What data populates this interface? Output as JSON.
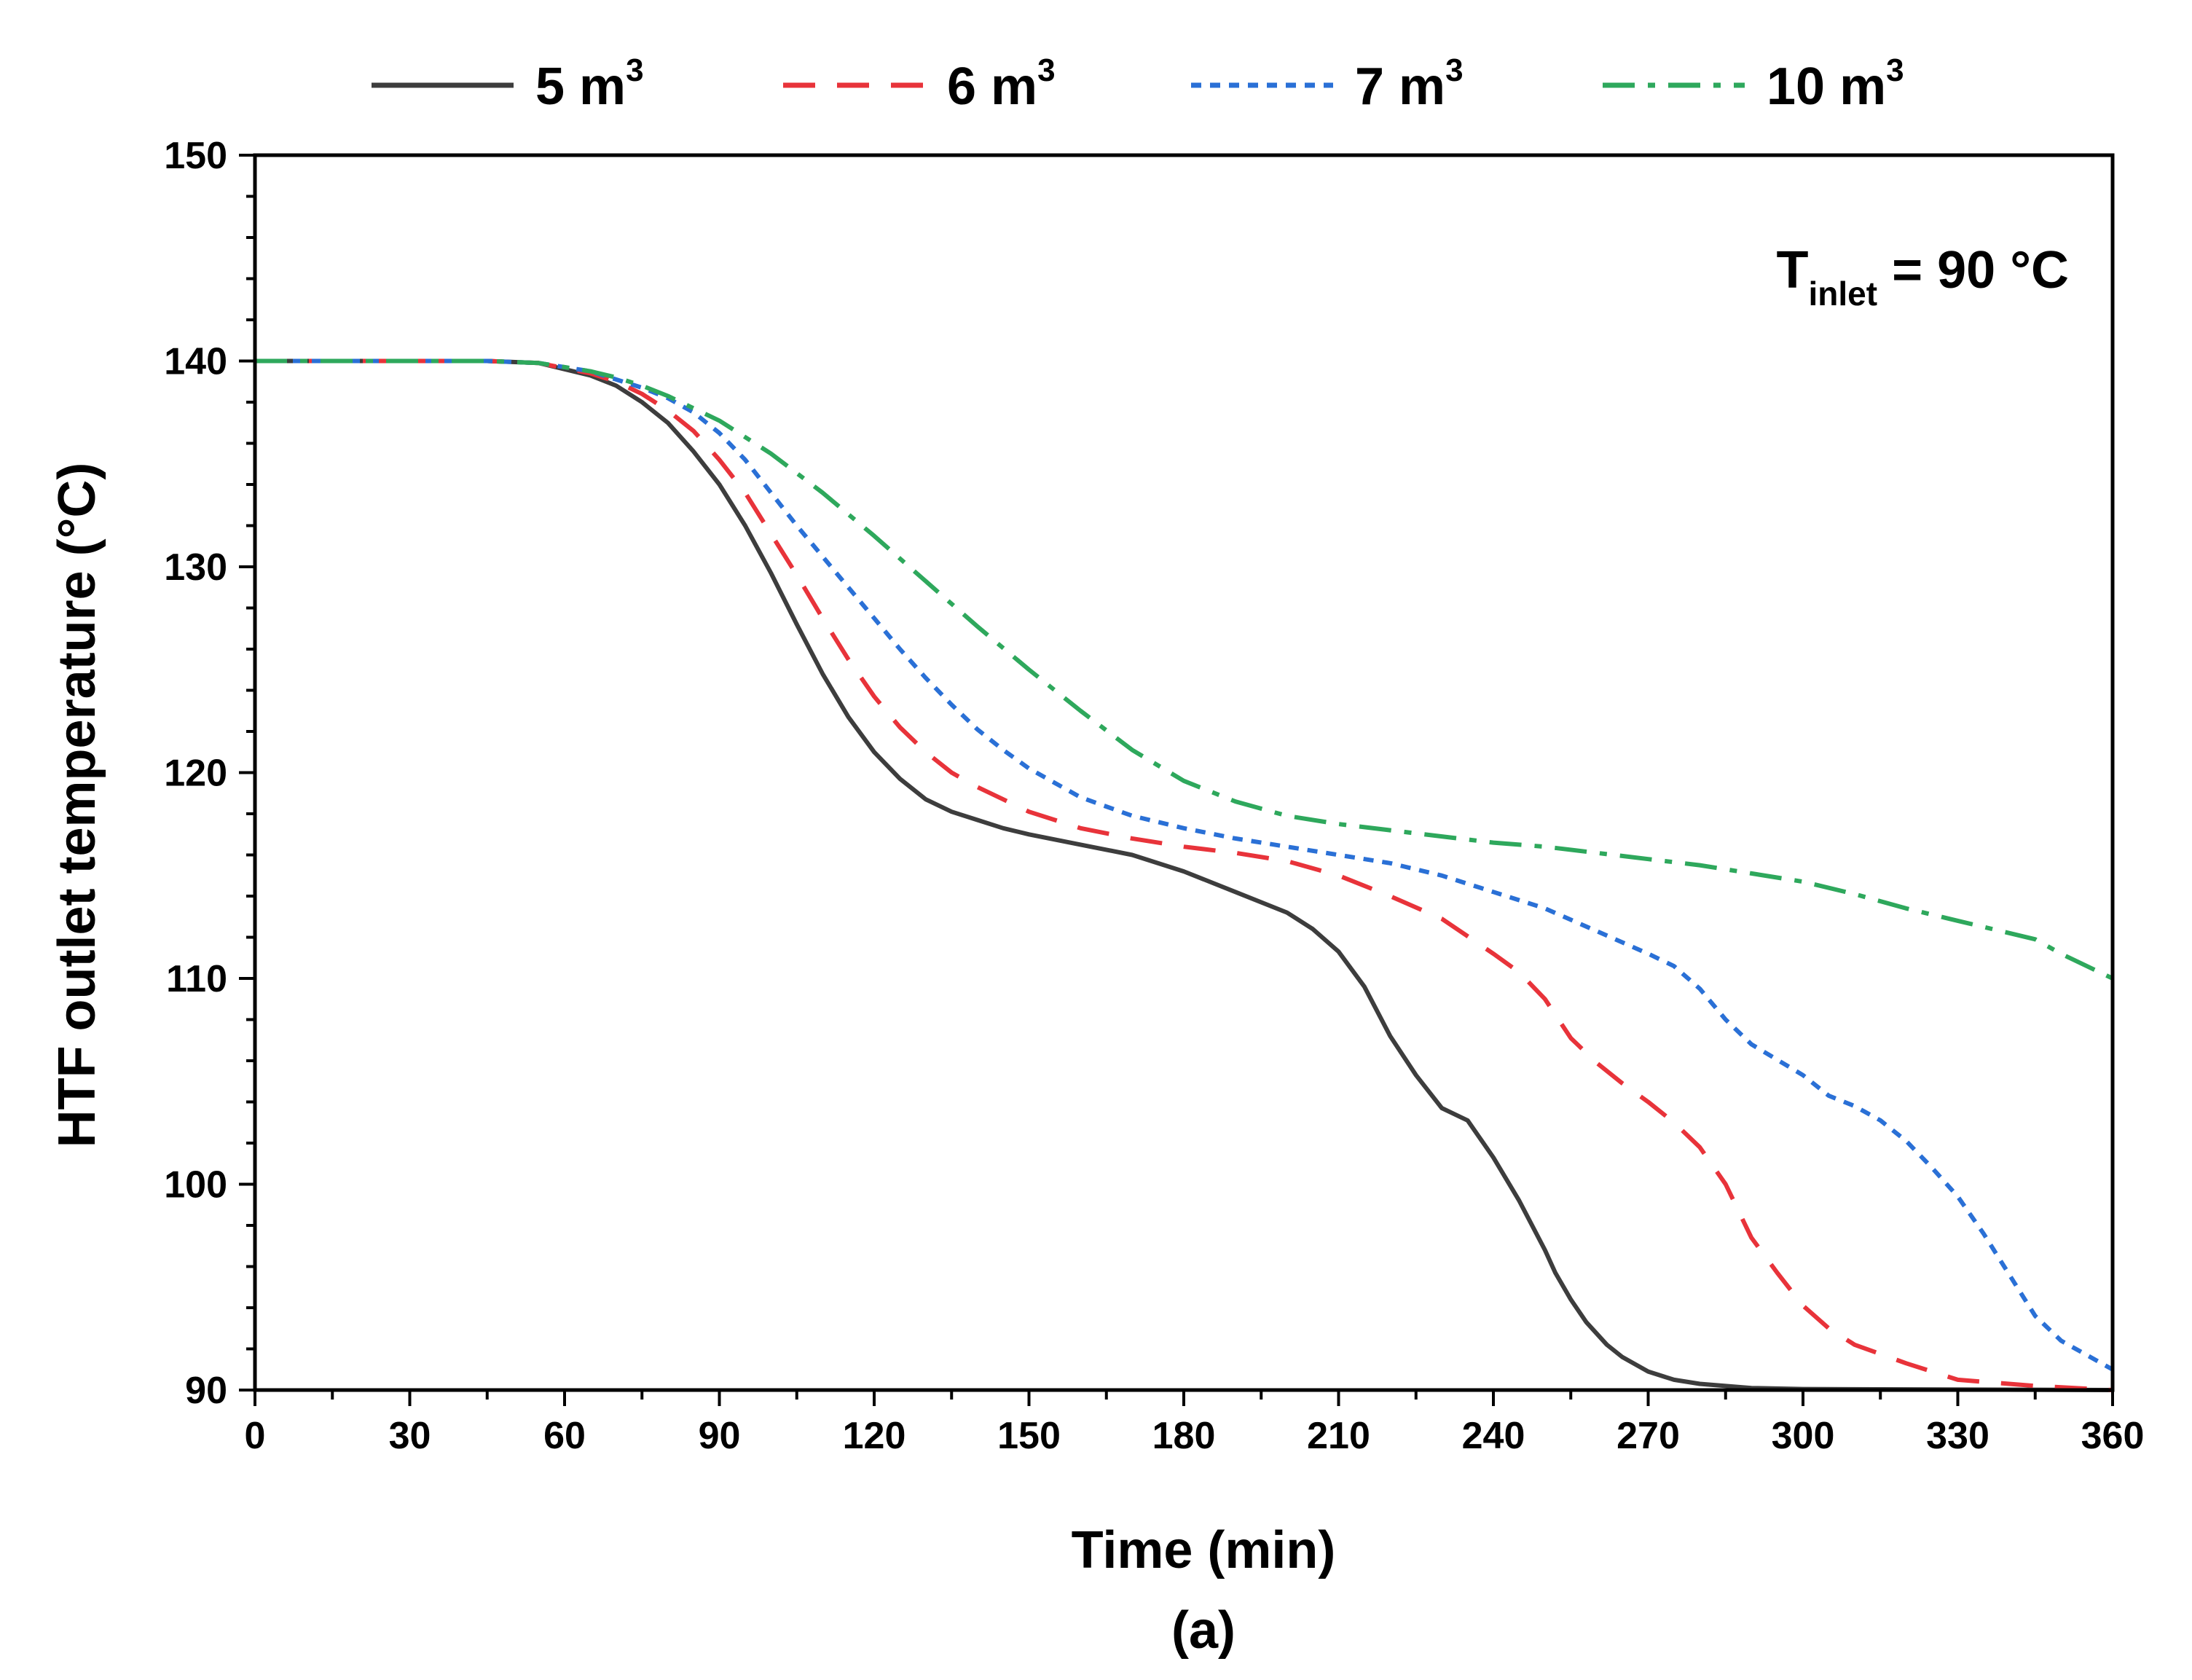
{
  "chart_data": {
    "type": "line",
    "title": "",
    "xlabel": "Time (min)",
    "ylabel": "HTF outlet temperature (°C)",
    "caption": "(a)",
    "xlim": [
      0,
      360
    ],
    "ylim": [
      90,
      150
    ],
    "xticks": [
      0,
      30,
      60,
      90,
      120,
      150,
      180,
      210,
      240,
      270,
      300,
      330,
      360
    ],
    "yticks": [
      90,
      100,
      110,
      120,
      130,
      140,
      150
    ],
    "grid": false,
    "legend_position": "top",
    "annotation": {
      "main": "T",
      "sub": "inlet",
      "rest": " = 90 °C"
    },
    "series": [
      {
        "name": "5 m",
        "sup": "3",
        "color": "#3d3d3d",
        "style": "solid",
        "x": [
          0,
          45,
          55,
          65,
          70,
          75,
          80,
          85,
          90,
          95,
          100,
          105,
          110,
          115,
          120,
          125,
          130,
          135,
          140,
          145,
          150,
          160,
          170,
          180,
          190,
          200,
          205,
          210,
          215,
          220,
          225,
          230,
          235,
          240,
          245,
          250,
          252,
          255,
          258,
          262,
          265,
          270,
          275,
          280,
          290,
          300,
          360
        ],
        "y": [
          140,
          140,
          139.9,
          139.3,
          138.8,
          138.0,
          137.0,
          135.6,
          134.0,
          132.0,
          129.7,
          127.2,
          124.8,
          122.7,
          121.0,
          119.7,
          118.7,
          118.1,
          117.7,
          117.3,
          117.0,
          116.5,
          116.0,
          115.2,
          114.2,
          113.2,
          112.4,
          111.3,
          109.6,
          107.2,
          105.3,
          103.7,
          103.1,
          101.3,
          99.2,
          96.8,
          95.7,
          94.4,
          93.3,
          92.2,
          91.6,
          90.9,
          90.5,
          90.3,
          90.1,
          90.05,
          90
        ]
      },
      {
        "name": "6 m",
        "sup": "3",
        "color": "#e8333a",
        "style": "dashed",
        "x": [
          0,
          45,
          55,
          65,
          70,
          75,
          80,
          85,
          90,
          95,
          100,
          105,
          110,
          115,
          120,
          125,
          130,
          135,
          140,
          145,
          150,
          160,
          170,
          180,
          190,
          200,
          210,
          220,
          230,
          240,
          245,
          250,
          255,
          260,
          265,
          270,
          275,
          280,
          285,
          290,
          295,
          300,
          305,
          310,
          320,
          330,
          345,
          360
        ],
        "y": [
          140,
          140,
          139.9,
          139.4,
          139.0,
          138.4,
          137.6,
          136.6,
          135.2,
          133.6,
          131.6,
          129.6,
          127.5,
          125.5,
          123.7,
          122.2,
          121.0,
          120.0,
          119.3,
          118.7,
          118.1,
          117.3,
          116.8,
          116.4,
          116.1,
          115.7,
          115.0,
          114.0,
          112.9,
          111.2,
          110.3,
          109.0,
          107.1,
          105.9,
          104.9,
          104.0,
          103.0,
          101.8,
          100.0,
          97.4,
          95.7,
          94.1,
          93.0,
          92.2,
          91.3,
          90.5,
          90.2,
          90.0
        ]
      },
      {
        "name": "7 m",
        "sup": "3",
        "color": "#2a70d6",
        "style": "dotted",
        "x": [
          0,
          45,
          55,
          65,
          70,
          75,
          80,
          85,
          90,
          95,
          100,
          105,
          110,
          115,
          120,
          125,
          130,
          135,
          140,
          145,
          150,
          155,
          160,
          170,
          180,
          190,
          200,
          210,
          220,
          230,
          240,
          250,
          260,
          270,
          275,
          280,
          285,
          290,
          300,
          305,
          310,
          315,
          320,
          325,
          330,
          335,
          340,
          345,
          350,
          360
        ],
        "y": [
          140,
          140,
          139.9,
          139.5,
          139.1,
          138.7,
          138.2,
          137.5,
          136.5,
          135.2,
          133.6,
          132.0,
          130.5,
          129.0,
          127.5,
          126.0,
          124.6,
          123.3,
          122.1,
          121.1,
          120.2,
          119.5,
          118.8,
          117.9,
          117.3,
          116.8,
          116.4,
          116.0,
          115.6,
          115.0,
          114.2,
          113.4,
          112.3,
          111.2,
          110.6,
          109.5,
          108.0,
          106.8,
          105.3,
          104.3,
          103.8,
          103.1,
          102.1,
          100.8,
          99.4,
          97.6,
          95.6,
          93.6,
          92.4,
          91.0
        ]
      },
      {
        "name": "10 m",
        "sup": "3",
        "color": "#2ea85c",
        "style": "dashdot",
        "x": [
          0,
          45,
          55,
          65,
          70,
          75,
          80,
          90,
          100,
          110,
          120,
          130,
          140,
          150,
          160,
          170,
          180,
          190,
          200,
          210,
          220,
          230,
          240,
          250,
          260,
          270,
          280,
          290,
          300,
          310,
          320,
          330,
          340,
          345,
          350,
          355,
          360
        ],
        "y": [
          140,
          140,
          139.9,
          139.5,
          139.2,
          138.8,
          138.3,
          137.1,
          135.5,
          133.6,
          131.5,
          129.3,
          127.1,
          125.0,
          123.0,
          121.1,
          119.6,
          118.6,
          117.9,
          117.5,
          117.2,
          116.9,
          116.6,
          116.4,
          116.1,
          115.8,
          115.5,
          115.1,
          114.7,
          114.1,
          113.4,
          112.8,
          112.2,
          111.9,
          111.2,
          110.6,
          110.0
        ]
      }
    ]
  }
}
